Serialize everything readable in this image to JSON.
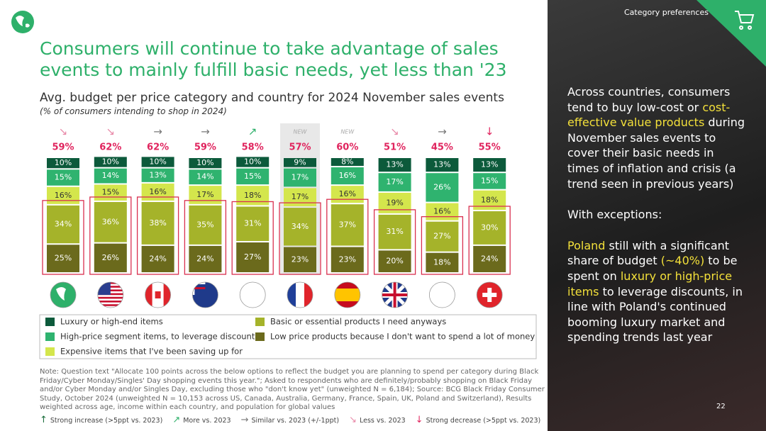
{
  "header": {
    "section": "Category preferences",
    "page": "22"
  },
  "chart_data": {
    "type": "bar",
    "stacked": true,
    "title": "Consumers will continue to take advantage of sales events to mainly fulfill basic needs, yet less than '23",
    "subtitle": "Avg. budget per price category and country for 2024 November sales events",
    "subtitle_note": "(% of consumers intending to shop in 2024)",
    "categories": [
      null,
      null,
      null,
      null,
      null,
      null,
      null,
      null,
      null,
      null
    ],
    "highlight_category": 5,
    "series": [
      {
        "name": "Low price products because I don't want to spend a lot of money",
        "color": "#6b6a1c",
        "label_color": "#ffffff",
        "values": [
          25,
          26,
          24,
          24,
          27,
          23,
          23,
          20,
          18,
          24
        ],
        "value_labels": [
          "25%",
          "26%",
          "24%",
          "24%",
          "27%",
          "23%",
          "23%",
          "20%",
          "18%",
          "24%"
        ]
      },
      {
        "name": "Basic or essential products I need anyways",
        "color": "#a5b32a",
        "label_color": "#ffffff",
        "values": [
          34,
          36,
          38,
          35,
          31,
          34,
          37,
          31,
          27,
          30
        ],
        "value_labels": [
          "34%",
          "36%",
          "38%",
          "35%",
          "31%",
          "34%",
          "37%",
          "31%",
          "27%",
          "30%"
        ]
      },
      {
        "name": "Expensive items that I've been saving up for",
        "color": "#d4e64c",
        "label_color": "#333333",
        "values": [
          16,
          15,
          16,
          17,
          18,
          17,
          16,
          19,
          16,
          18
        ],
        "value_labels": [
          "16%",
          "15%",
          "16%",
          "17%",
          "18%",
          "17%",
          "16%",
          "19%",
          "16%",
          "18%"
        ]
      },
      {
        "name": "High-price segment items, to leverage discount",
        "color": "#2fb36f",
        "label_color": "#ffffff",
        "values": [
          15,
          14,
          13,
          14,
          15,
          17,
          16,
          17,
          26,
          15
        ],
        "value_labels": [
          "15%",
          "14%",
          "13%",
          "14%",
          "15%",
          "17%",
          "16%",
          "17%",
          "26%",
          "15%"
        ]
      },
      {
        "name": "Luxury or high-end items",
        "color": "#0c5a3b",
        "label_color": "#ffffff",
        "values": [
          10,
          10,
          10,
          10,
          10,
          9,
          8,
          13,
          13,
          13
        ],
        "value_labels": [
          "10%",
          "10%",
          "10%",
          "10%",
          "10%",
          "9%",
          "8%",
          "13%",
          "13%",
          "13%"
        ]
      }
    ],
    "totals": {
      "values": [
        59,
        62,
        62,
        59,
        58,
        57,
        60,
        51,
        45,
        55
      ],
      "value_labels": [
        "59%",
        "62%",
        "62%",
        "59%",
        "58%",
        "57%",
        "60%",
        "51%",
        "45%",
        "55%"
      ],
      "color": "#e0245e"
    },
    "trends": [
      "↘",
      "↘",
      "→",
      "→",
      "↗",
      "NEW",
      "NEW",
      "↘",
      "→",
      "↓"
    ]
  },
  "footnote": "Note: Question text \"Allocate 100 points across the below options to reflect the budget you are planning to spend per category during Black Friday/Cyber Monday/Singles' Day shopping events this year.\"; Asked to respondents who are definitely/probably shopping on Black Friday and/or Cyber Monday and/or Singles Day, excluding those who \"don't know yet\" (unweighted N = 6,184); Source: BCG Black Friday Consumer Study, October 2024 (unweighted N = 10,153 across US, Canada, Australia, Germany, France, Spain, UK, Poland and Switzerland), Results weighted across age, income within each country, and population for global values",
  "trend_legend": [
    {
      "symbol": "↑",
      "label": "Strong increase (>5ppt vs. 2023)"
    },
    {
      "symbol": "↗",
      "label": "More vs. 2023"
    },
    {
      "symbol": "→",
      "label": "Similar vs. 2023 (+/-1ppt)"
    },
    {
      "symbol": "↘",
      "label": "Less vs. 2023"
    },
    {
      "symbol": "↓",
      "label": "Strong decrease (>5ppt vs. 2023)"
    }
  ],
  "panel": {
    "paragraphs": [
      [
        {
          "text": "Across countries, consumers tend to buy low-cost or ",
          "highlight": false
        },
        {
          "text": "cost-effective value products",
          "highlight": true
        },
        {
          "text": " during November sales events to cover their basic needs in times of inflation and crisis (a trend seen in previous years)",
          "highlight": false
        }
      ],
      [
        {
          "text": "With exceptions:",
          "highlight": false
        }
      ],
      [
        {
          "text": "Poland",
          "highlight": true
        },
        {
          "text": " still with a significant share of budget ",
          "highlight": false
        },
        {
          "text": "(~40%)",
          "highlight": true
        },
        {
          "text": " to be spent on ",
          "highlight": false
        },
        {
          "text": "luxury or high-price items",
          "highlight": true
        },
        {
          "text": " to leverage discounts, in line with Poland's continued booming luxury market and spending trends last year",
          "highlight": false
        }
      ]
    ]
  }
}
